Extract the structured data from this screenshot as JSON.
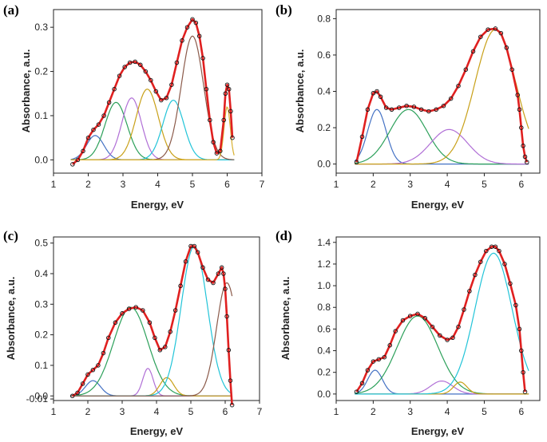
{
  "chart_data": [
    {
      "panel": "(a)",
      "type": "line",
      "xlabel": "Energy, eV",
      "ylabel": "Absorbance, a.u.",
      "xlim": [
        1,
        7
      ],
      "ylim": [
        -0.03,
        0.34
      ],
      "xticks": [
        "1",
        "2",
        "3",
        "4",
        "5",
        "6",
        "7"
      ],
      "yticks": [
        "0.0",
        "0.1",
        "0.2",
        "0.3"
      ],
      "ytick_values": [
        0,
        0.1,
        0.2,
        0.3
      ],
      "peaks": [
        {
          "color": "#4472c4",
          "center": 2.2,
          "amplitude": 0.055,
          "width": 0.25
        },
        {
          "color": "#2ca05a",
          "center": 2.8,
          "amplitude": 0.13,
          "width": 0.32
        },
        {
          "color": "#b06fd6",
          "center": 3.25,
          "amplitude": 0.14,
          "width": 0.28
        },
        {
          "color": "#c8a018",
          "center": 3.7,
          "amplitude": 0.16,
          "width": 0.32
        },
        {
          "color": "#22c4d8",
          "center": 4.45,
          "amplitude": 0.135,
          "width": 0.3
        },
        {
          "color": "#8b5a4a",
          "center": 5.0,
          "amplitude": 0.28,
          "width": 0.32
        },
        {
          "color": "#d8b030",
          "center": 6.0,
          "amplitude": 0.12,
          "width": 0.09
        }
      ],
      "measured": {
        "x": [
          1.55,
          1.7,
          1.85,
          2.0,
          2.15,
          2.3,
          2.45,
          2.6,
          2.75,
          2.9,
          3.05,
          3.2,
          3.35,
          3.5,
          3.65,
          3.8,
          3.95,
          4.1,
          4.25,
          4.4,
          4.55,
          4.7,
          4.85,
          5.0,
          5.1,
          5.2,
          5.3,
          5.4,
          5.5,
          5.6,
          5.7,
          5.8,
          5.9,
          5.95,
          6.0,
          6.05,
          6.1,
          6.15
        ],
        "y": [
          -0.01,
          0.0,
          0.02,
          0.05,
          0.068,
          0.08,
          0.1,
          0.13,
          0.16,
          0.19,
          0.21,
          0.22,
          0.222,
          0.215,
          0.2,
          0.18,
          0.155,
          0.135,
          0.14,
          0.17,
          0.22,
          0.27,
          0.3,
          0.318,
          0.31,
          0.28,
          0.23,
          0.16,
          0.09,
          0.04,
          0.015,
          0.02,
          0.09,
          0.15,
          0.17,
          0.16,
          0.11,
          0.05
        ]
      }
    },
    {
      "panel": "(b)",
      "type": "line",
      "xlabel": "Energy, eV",
      "ylabel": "Absorbance, a.u.",
      "xlim": [
        1,
        6.5
      ],
      "ylim": [
        -0.05,
        0.85
      ],
      "xticks": [
        "1",
        "2",
        "3",
        "4",
        "5",
        "6"
      ],
      "yticks": [
        "0.0",
        "0.2",
        "0.4",
        "0.6",
        "0.8"
      ],
      "ytick_values": [
        0,
        0.2,
        0.4,
        0.6,
        0.8
      ],
      "peaks": [
        {
          "color": "#4472c4",
          "center": 2.1,
          "amplitude": 0.3,
          "width": 0.25
        },
        {
          "color": "#2ca05a",
          "center": 2.95,
          "amplitude": 0.3,
          "width": 0.5
        },
        {
          "color": "#b06fd6",
          "center": 4.05,
          "amplitude": 0.19,
          "width": 0.5
        },
        {
          "color": "#c8a018",
          "center": 5.3,
          "amplitude": 0.74,
          "width": 0.55
        }
      ],
      "measured": {
        "x": [
          1.55,
          1.7,
          1.85,
          2.0,
          2.1,
          2.2,
          2.35,
          2.5,
          2.7,
          2.9,
          3.1,
          3.3,
          3.5,
          3.7,
          3.9,
          4.1,
          4.3,
          4.5,
          4.7,
          4.9,
          5.1,
          5.3,
          5.45,
          5.6,
          5.75,
          5.9,
          5.95,
          6.0,
          6.05,
          6.1,
          6.15
        ],
        "y": [
          0.01,
          0.15,
          0.3,
          0.39,
          0.4,
          0.37,
          0.31,
          0.3,
          0.31,
          0.32,
          0.315,
          0.3,
          0.29,
          0.3,
          0.32,
          0.36,
          0.43,
          0.52,
          0.62,
          0.7,
          0.74,
          0.745,
          0.72,
          0.64,
          0.52,
          0.38,
          0.3,
          0.2,
          0.1,
          0.04,
          0.01
        ]
      }
    },
    {
      "panel": "(c)",
      "type": "line",
      "xlabel": "Energy, eV",
      "ylabel": "Absorbance, a.u.",
      "xlim": [
        1,
        7
      ],
      "ylim": [
        -0.015,
        0.52
      ],
      "xticks": [
        "1",
        "2",
        "3",
        "4",
        "5",
        "6",
        "7"
      ],
      "yticks": [
        "-0.01",
        "0.0",
        "0.1",
        "0.2",
        "0.3",
        "0.4",
        "0.5"
      ],
      "ytick_values": [
        -0.01,
        0,
        0.1,
        0.2,
        0.3,
        0.4,
        0.5
      ],
      "peaks": [
        {
          "color": "#4472c4",
          "center": 2.15,
          "amplitude": 0.05,
          "width": 0.22
        },
        {
          "color": "#2ca05a",
          "center": 3.25,
          "amplitude": 0.29,
          "width": 0.5
        },
        {
          "color": "#b06fd6",
          "center": 3.75,
          "amplitude": 0.09,
          "width": 0.15
        },
        {
          "color": "#c8a018",
          "center": 4.3,
          "amplitude": 0.06,
          "width": 0.2
        },
        {
          "color": "#22c4d8",
          "center": 5.1,
          "amplitude": 0.49,
          "width": 0.38
        },
        {
          "color": "#8b5a4a",
          "center": 6.05,
          "amplitude": 0.37,
          "width": 0.3
        }
      ],
      "measured": {
        "x": [
          1.55,
          1.7,
          1.85,
          2.0,
          2.15,
          2.3,
          2.45,
          2.6,
          2.8,
          3.0,
          3.2,
          3.4,
          3.6,
          3.8,
          3.95,
          4.1,
          4.25,
          4.4,
          4.55,
          4.7,
          4.85,
          5.0,
          5.1,
          5.2,
          5.35,
          5.5,
          5.65,
          5.8,
          5.9,
          5.95,
          6.0,
          6.05,
          6.1,
          6.15,
          6.2
        ],
        "y": [
          0.0,
          0.01,
          0.04,
          0.07,
          0.085,
          0.1,
          0.14,
          0.19,
          0.24,
          0.27,
          0.285,
          0.29,
          0.28,
          0.24,
          0.19,
          0.15,
          0.16,
          0.21,
          0.28,
          0.36,
          0.44,
          0.49,
          0.49,
          0.47,
          0.42,
          0.38,
          0.37,
          0.4,
          0.42,
          0.4,
          0.35,
          0.26,
          0.15,
          0.05,
          -0.03
        ]
      }
    },
    {
      "panel": "(d)",
      "type": "line",
      "xlabel": "Energy, eV",
      "ylabel": "Absorbance, a.u.",
      "xlim": [
        1,
        6.5
      ],
      "ylim": [
        -0.06,
        1.45
      ],
      "xticks": [
        "1",
        "2",
        "3",
        "4",
        "5",
        "6"
      ],
      "yticks": [
        "0.0",
        "0.2",
        "0.4",
        "0.6",
        "0.8",
        "1.0",
        "1.2",
        "1.4"
      ],
      "ytick_values": [
        0,
        0.2,
        0.4,
        0.6,
        0.8,
        1.0,
        1.2,
        1.4
      ],
      "peaks": [
        {
          "color": "#4472c4",
          "center": 2.05,
          "amplitude": 0.22,
          "width": 0.2
        },
        {
          "color": "#2ca05a",
          "center": 3.2,
          "amplitude": 0.72,
          "width": 0.55
        },
        {
          "color": "#b06fd6",
          "center": 3.85,
          "amplitude": 0.12,
          "width": 0.3
        },
        {
          "color": "#c8a018",
          "center": 4.35,
          "amplitude": 0.11,
          "width": 0.18
        },
        {
          "color": "#22c4d8",
          "center": 5.25,
          "amplitude": 1.3,
          "width": 0.5
        }
      ],
      "measured": {
        "x": [
          1.55,
          1.7,
          1.85,
          2.0,
          2.15,
          2.3,
          2.45,
          2.6,
          2.8,
          3.0,
          3.2,
          3.4,
          3.6,
          3.8,
          4.0,
          4.15,
          4.3,
          4.45,
          4.6,
          4.75,
          4.9,
          5.05,
          5.2,
          5.3,
          5.4,
          5.55,
          5.7,
          5.85,
          5.95,
          6.0,
          6.05,
          6.1
        ],
        "y": [
          0.02,
          0.1,
          0.22,
          0.3,
          0.32,
          0.34,
          0.45,
          0.58,
          0.68,
          0.72,
          0.74,
          0.7,
          0.62,
          0.54,
          0.5,
          0.52,
          0.62,
          0.78,
          0.95,
          1.1,
          1.22,
          1.32,
          1.36,
          1.36,
          1.32,
          1.2,
          1.02,
          0.82,
          0.6,
          0.4,
          0.2,
          0.02
        ]
      }
    }
  ]
}
